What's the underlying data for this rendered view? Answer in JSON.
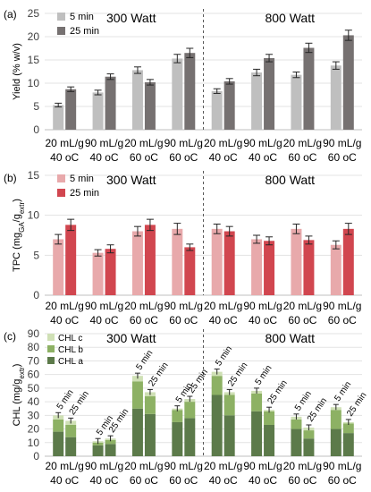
{
  "chart_data": [
    {
      "panel_label": "(a)",
      "type": "bar",
      "ylabel": "Yield (% w/v)",
      "ylim": [
        0,
        25
      ],
      "yticks": [
        0,
        5,
        10,
        15,
        20,
        25
      ],
      "group_labels": [
        "300 Watt",
        "800 Watt"
      ],
      "categories": [
        {
          "line1": "20 mL/g",
          "line2": "40 oC"
        },
        {
          "line1": "90 mL/g",
          "line2": "40 oC"
        },
        {
          "line1": "20 mL/g",
          "line2": "60 oC"
        },
        {
          "line1": "90 mL/g",
          "line2": "60 oC"
        },
        {
          "line1": "20 mL/g",
          "line2": "40 oC"
        },
        {
          "line1": "90 mL/g",
          "line2": "40 oC"
        },
        {
          "line1": "20 mL/g",
          "line2": "60 oC"
        },
        {
          "line1": "90 mL/g",
          "line2": "60 oC"
        }
      ],
      "series": [
        {
          "name": "5 min",
          "color": "#bfbfbf",
          "values": [
            5.3,
            8.0,
            12.8,
            15.3,
            8.3,
            12.3,
            11.8,
            13.8
          ],
          "errors": [
            0.4,
            0.5,
            0.7,
            0.9,
            0.5,
            0.7,
            0.6,
            0.8
          ]
        },
        {
          "name": "25 min",
          "color": "#767171",
          "values": [
            8.7,
            11.4,
            10.2,
            16.5,
            10.4,
            15.4,
            17.6,
            20.3
          ],
          "errors": [
            0.5,
            0.6,
            0.6,
            1.0,
            0.6,
            0.8,
            1.0,
            1.1
          ]
        }
      ],
      "grid": true,
      "legend": "top-left"
    },
    {
      "panel_label": "(b)",
      "type": "bar",
      "ylabel": "TPC (mgGA/gextr)",
      "ylim": [
        0,
        15
      ],
      "yticks": [
        0,
        5,
        10,
        15
      ],
      "group_labels": [
        "300 Watt",
        "800 Watt"
      ],
      "categories": [
        {
          "line1": "20 mL/g",
          "line2": "40 oC"
        },
        {
          "line1": "90 mL/g",
          "line2": "40 oC"
        },
        {
          "line1": "20 mL/g",
          "line2": "60 oC"
        },
        {
          "line1": "90 mL/g",
          "line2": "60 oC"
        },
        {
          "line1": "20 mL/g",
          "line2": "40 oC"
        },
        {
          "line1": "90 mL/g",
          "line2": "40 oC"
        },
        {
          "line1": "20 mL/g",
          "line2": "60 oC"
        },
        {
          "line1": "90 mL/g",
          "line2": "60 oC"
        }
      ],
      "series": [
        {
          "name": "5 min",
          "color": "#e8a9ab",
          "values": [
            7.0,
            5.3,
            8.0,
            8.3,
            8.3,
            7.0,
            8.3,
            6.3
          ],
          "errors": [
            0.6,
            0.4,
            0.6,
            0.7,
            0.6,
            0.5,
            0.6,
            0.5
          ]
        },
        {
          "name": "25 min",
          "color": "#d1464f",
          "values": [
            8.8,
            5.8,
            8.8,
            6.0,
            8.0,
            6.8,
            6.9,
            8.3
          ],
          "errors": [
            0.7,
            0.5,
            0.7,
            0.4,
            0.6,
            0.5,
            0.5,
            0.7
          ]
        }
      ],
      "grid": true,
      "legend": "top-left"
    },
    {
      "panel_label": "(c)",
      "type": "bar",
      "stacked": true,
      "ylabel": "CHL (mg/gextr)",
      "ylim": [
        0,
        90
      ],
      "yticks": [
        0,
        10,
        20,
        30,
        40,
        50,
        60,
        70,
        80,
        90
      ],
      "group_labels": [
        "300 Watt",
        "800 Watt"
      ],
      "categories": [
        {
          "line1": "20 mL/g",
          "line2": "40 oC"
        },
        {
          "line1": "90 mL/g",
          "line2": "40 oC"
        },
        {
          "line1": "20 mL/g",
          "line2": "60 oC"
        },
        {
          "line1": "90 mL/g",
          "line2": "60 oC"
        },
        {
          "line1": "20 mL/g",
          "line2": "40 oC"
        },
        {
          "line1": "90 mL/g",
          "line2": "40 oC"
        },
        {
          "line1": "20 mL/g",
          "line2": "60 oC"
        },
        {
          "line1": "90 mL/g",
          "line2": "60 oC"
        }
      ],
      "bar_labels": [
        "5 min",
        "25 min"
      ],
      "components": [
        {
          "name": "CHL a",
          "color": "#5c7a4a"
        },
        {
          "name": "CHL b",
          "color": "#8db164"
        },
        {
          "name": "CHL c",
          "color": "#cfe0b5"
        }
      ],
      "stacks": [
        [
          [
            18,
            9,
            3
          ],
          [
            14,
            9,
            3
          ]
        ],
        [
          [
            8,
            2,
            1
          ],
          [
            9,
            3,
            1
          ]
        ],
        [
          [
            35,
            20,
            4
          ],
          [
            31,
            13,
            3
          ]
        ],
        [
          [
            25,
            9,
            1
          ],
          [
            28,
            12,
            2
          ]
        ],
        [
          [
            45,
            14,
            3
          ],
          [
            30,
            15,
            2
          ]
        ],
        [
          [
            33,
            13,
            2
          ],
          [
            23,
            10,
            1
          ]
        ],
        [
          [
            20,
            7,
            2
          ],
          [
            13,
            6,
            2
          ]
        ],
        [
          [
            20,
            14,
            2
          ],
          [
            17,
            7,
            1
          ]
        ]
      ],
      "totals": [
        30,
        25,
        59,
        35,
        62,
        48,
        29,
        36,
        46,
        41,
        47,
        34,
        21,
        25,
        11,
        14
      ],
      "grid": true,
      "legend": "top-left"
    }
  ]
}
